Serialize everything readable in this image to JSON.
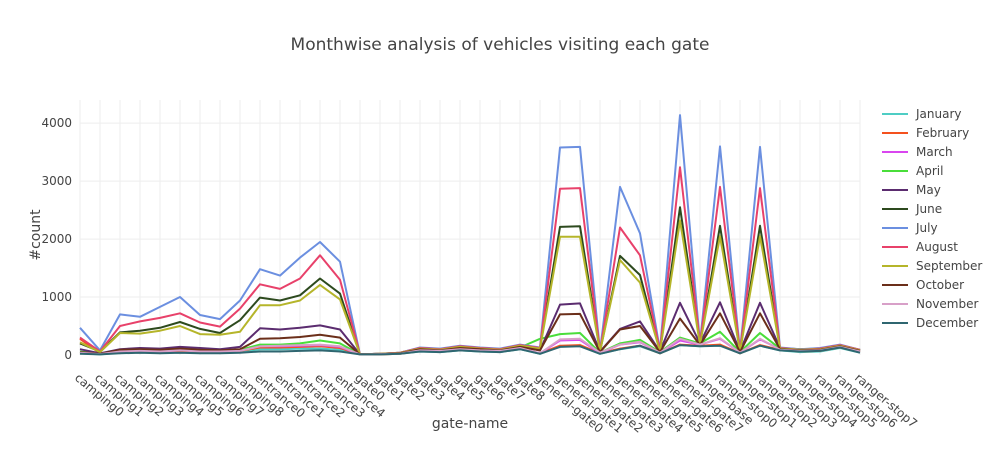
{
  "chart_data": {
    "type": "line",
    "title": "Monthwise analysis of vehicles visiting each gate",
    "xlabel": "gate-name",
    "ylabel": "#count",
    "ylim": [
      0,
      4400
    ],
    "yticks": [
      0,
      1000,
      2000,
      3000,
      4000
    ],
    "grid": true,
    "legend_position": "right",
    "categories": [
      "camping0",
      "camping1",
      "camping2",
      "camping3",
      "camping4",
      "camping5",
      "camping6",
      "camping7",
      "camping8",
      "entrance0",
      "entrance1",
      "entrance2",
      "entrance3",
      "entrance4",
      "gate0",
      "gate1",
      "gate2",
      "gate3",
      "gate4",
      "gate5",
      "gate6",
      "gate7",
      "gate8",
      "general-gate0",
      "general-gate1",
      "general-gate2",
      "general-gate3",
      "general-gate4",
      "general-gate5",
      "general-gate6",
      "general-gate7",
      "ranger-base",
      "ranger-stop0",
      "ranger-stop1",
      "ranger-stop2",
      "ranger-stop3",
      "ranger-stop4",
      "ranger-stop5",
      "ranger-stop6",
      "ranger-stop7"
    ],
    "visible_tick_labels": [
      "camping0",
      "camping1",
      "camping2",
      "camping3",
      "camping4",
      "camping5",
      "camping6",
      "camping7",
      "camping8",
      "entrance0",
      "entrance1",
      "entrance2",
      "entrance3",
      "entrance4",
      "gate0",
      "gate1",
      "gate2",
      "gate3",
      "gate4",
      "gate5",
      "gate6",
      "gate7",
      "gate8",
      "general-gate0",
      "general-gate1",
      "general-gate2",
      "general-gate3",
      "general-gate4",
      "general-gate5",
      "general-gate6",
      "general-gate7",
      "ranger-base",
      "ranger-stop0",
      "ranger-stop1",
      "ranger-stop2",
      "ranger-stop3",
      "ranger-stop4",
      "ranger-stop5",
      "ranger-stop6",
      "ranger-stop7"
    ],
    "series": [
      {
        "name": "January",
        "color": "#4ECDC4",
        "values": [
          30,
          10,
          40,
          50,
          40,
          50,
          40,
          40,
          50,
          100,
          100,
          110,
          110,
          90,
          10,
          10,
          20,
          60,
          50,
          80,
          60,
          50,
          100,
          20,
          150,
          160,
          20,
          100,
          150,
          30,
          170,
          150,
          170,
          30,
          160,
          80,
          50,
          60,
          120,
          40
        ]
      },
      {
        "name": "February",
        "color": "#F4511E",
        "values": [
          280,
          30,
          60,
          70,
          60,
          70,
          60,
          60,
          70,
          130,
          130,
          140,
          150,
          120,
          10,
          10,
          20,
          70,
          60,
          90,
          70,
          60,
          110,
          30,
          160,
          170,
          30,
          110,
          160,
          30,
          180,
          160,
          180,
          30,
          170,
          90,
          60,
          70,
          130,
          50
        ]
      },
      {
        "name": "March",
        "color": "#D946EF",
        "values": [
          50,
          20,
          60,
          70,
          60,
          80,
          70,
          60,
          80,
          150,
          150,
          160,
          170,
          140,
          10,
          15,
          25,
          80,
          70,
          100,
          80,
          70,
          120,
          30,
          250,
          260,
          30,
          180,
          220,
          40,
          250,
          180,
          280,
          40,
          270,
          100,
          70,
          80,
          140,
          60
        ]
      },
      {
        "name": "April",
        "color": "#4ADE3A",
        "values": [
          60,
          20,
          70,
          80,
          70,
          90,
          80,
          70,
          90,
          180,
          180,
          200,
          250,
          200,
          10,
          15,
          25,
          90,
          80,
          110,
          90,
          80,
          130,
          280,
          360,
          380,
          40,
          200,
          260,
          50,
          300,
          200,
          400,
          50,
          380,
          110,
          80,
          90,
          150,
          70
        ]
      },
      {
        "name": "May",
        "color": "#5B2C6F",
        "values": [
          100,
          30,
          100,
          120,
          110,
          140,
          120,
          100,
          140,
          460,
          440,
          470,
          510,
          440,
          10,
          20,
          30,
          100,
          90,
          130,
          100,
          90,
          150,
          80,
          870,
          890,
          60,
          450,
          580,
          60,
          900,
          200,
          910,
          60,
          900,
          120,
          90,
          100,
          160,
          80
        ]
      },
      {
        "name": "June",
        "color": "#2D4A1E",
        "values": [
          200,
          60,
          390,
          420,
          470,
          570,
          450,
          380,
          600,
          990,
          940,
          1030,
          1320,
          1060,
          10,
          20,
          40,
          120,
          100,
          150,
          120,
          100,
          170,
          120,
          2210,
          2220,
          60,
          1710,
          1380,
          60,
          2550,
          190,
          2230,
          60,
          2230,
          120,
          100,
          110,
          170,
          90
        ]
      },
      {
        "name": "July",
        "color": "#6B8FE0",
        "values": [
          470,
          80,
          700,
          660,
          830,
          1000,
          690,
          620,
          940,
          1480,
          1370,
          1680,
          1950,
          1610,
          10,
          20,
          40,
          130,
          110,
          160,
          130,
          110,
          180,
          130,
          3580,
          3590,
          60,
          2900,
          2100,
          80,
          4140,
          200,
          3600,
          60,
          3590,
          130,
          100,
          120,
          180,
          90
        ]
      },
      {
        "name": "August",
        "color": "#E8416A",
        "values": [
          300,
          60,
          500,
          580,
          640,
          720,
          560,
          490,
          800,
          1220,
          1140,
          1320,
          1720,
          1300,
          10,
          20,
          40,
          120,
          100,
          150,
          120,
          100,
          170,
          120,
          2870,
          2880,
          60,
          2200,
          1720,
          70,
          3240,
          190,
          2900,
          60,
          2880,
          120,
          90,
          110,
          170,
          90
        ]
      },
      {
        "name": "September",
        "color": "#B5B52A",
        "values": [
          220,
          50,
          380,
          370,
          420,
          500,
          360,
          350,
          400,
          860,
          860,
          940,
          1210,
          960,
          10,
          20,
          35,
          110,
          90,
          140,
          110,
          90,
          160,
          110,
          2040,
          2040,
          60,
          1640,
          1250,
          60,
          2320,
          180,
          2050,
          60,
          2050,
          110,
          90,
          100,
          160,
          80
        ]
      },
      {
        "name": "October",
        "color": "#6B2F1A",
        "values": [
          50,
          20,
          90,
          100,
          90,
          110,
          90,
          80,
          100,
          280,
          290,
          310,
          350,
          300,
          10,
          15,
          30,
          100,
          80,
          120,
          100,
          80,
          140,
          80,
          700,
          710,
          50,
          440,
          500,
          50,
          630,
          170,
          720,
          50,
          720,
          100,
          80,
          90,
          150,
          70
        ]
      },
      {
        "name": "November",
        "color": "#D8A0C8",
        "values": [
          40,
          15,
          60,
          70,
          60,
          80,
          60,
          60,
          70,
          150,
          160,
          170,
          180,
          150,
          10,
          15,
          25,
          80,
          70,
          100,
          80,
          70,
          120,
          30,
          270,
          280,
          40,
          180,
          230,
          40,
          280,
          180,
          290,
          40,
          280,
          90,
          70,
          80,
          140,
          60
        ]
      },
      {
        "name": "December",
        "color": "#2F6670",
        "values": [
          20,
          10,
          30,
          40,
          30,
          40,
          30,
          30,
          40,
          60,
          60,
          70,
          80,
          60,
          10,
          10,
          20,
          60,
          50,
          80,
          60,
          50,
          100,
          20,
          140,
          150,
          20,
          100,
          160,
          30,
          170,
          150,
          160,
          30,
          160,
          80,
          60,
          70,
          130,
          40
        ]
      }
    ]
  }
}
